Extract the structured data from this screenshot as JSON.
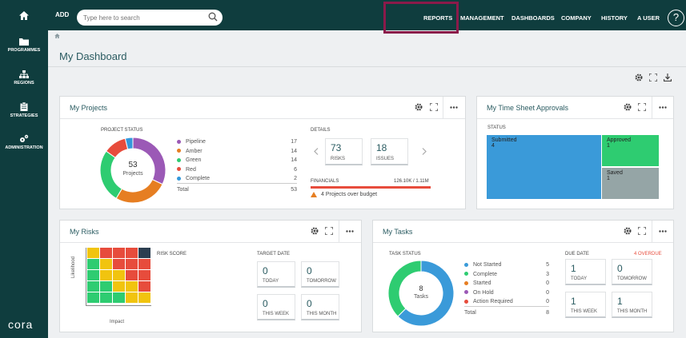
{
  "topbar": {
    "add_label": "ADD",
    "search_placeholder": "Type here to search",
    "nav": [
      "REPORTS",
      "MANAGEMENT",
      "DASHBOARDS",
      "COMPANY",
      "HISTORY",
      "A USER"
    ],
    "help": "?"
  },
  "sidebar": {
    "items": [
      "PROGRAMMES",
      "REGIONS",
      "STRATEGIES",
      "ADMINISTRATION"
    ],
    "logo": "cora"
  },
  "page": {
    "title": "My Dashboard"
  },
  "projects": {
    "title": "My Projects",
    "status_label": "PROJECT STATUS",
    "donut_count": "53",
    "donut_label": "Projects",
    "legend": [
      {
        "name": "Pipeline",
        "value": "17",
        "color": "#9b59b6"
      },
      {
        "name": "Amber",
        "value": "14",
        "color": "#e67e22"
      },
      {
        "name": "Green",
        "value": "14",
        "color": "#2ecc71"
      },
      {
        "name": "Red",
        "value": "6",
        "color": "#e74c3c"
      },
      {
        "name": "Complete",
        "value": "2",
        "color": "#3498db"
      }
    ],
    "total_label": "Total",
    "total_value": "53",
    "details_label": "DETAILS",
    "risks_value": "73",
    "risks_label": "RISKS",
    "issues_value": "18",
    "issues_label": "ISSUES",
    "financials_label": "FINANCIALS",
    "financials_value": "126.10K / 1.11M",
    "over_budget": "4 Projects over budget"
  },
  "timesheet": {
    "title": "My Time Sheet Approvals",
    "status_label": "STATUS",
    "blocks": [
      {
        "label": "Submitted",
        "value": "4",
        "color": "#3a9ad9"
      },
      {
        "label": "Approved",
        "value": "1",
        "color": "#2ecc71"
      },
      {
        "label": "Saved",
        "value": "1",
        "color": "#95a5a6"
      }
    ]
  },
  "risks": {
    "title": "My Risks",
    "risk_score_label": "RISK SCORE",
    "likelihood_label": "Likelihood",
    "impact_label": "Impact",
    "matrix_colors": [
      [
        "#f1c40f",
        "#e74c3c",
        "#e74c3c",
        "#e74c3c",
        "#2c3e50"
      ],
      [
        "#2ecc71",
        "#f1c40f",
        "#e74c3c",
        "#e74c3c",
        "#e74c3c"
      ],
      [
        "#2ecc71",
        "#f1c40f",
        "#f1c40f",
        "#e74c3c",
        "#e74c3c"
      ],
      [
        "#2ecc71",
        "#2ecc71",
        "#f1c40f",
        "#f1c40f",
        "#e74c3c"
      ],
      [
        "#2ecc71",
        "#2ecc71",
        "#2ecc71",
        "#f1c40f",
        "#f1c40f"
      ]
    ],
    "target_date_label": "TARGET DATE",
    "tiles": [
      {
        "value": "0",
        "label": "TODAY"
      },
      {
        "value": "0",
        "label": "TOMORROW"
      },
      {
        "value": "0",
        "label": "THIS WEEK"
      },
      {
        "value": "0",
        "label": "THIS MONTH"
      }
    ]
  },
  "tasks": {
    "title": "My Tasks",
    "status_label": "TASK STATUS",
    "donut_count": "8",
    "donut_label": "Tasks",
    "legend": [
      {
        "name": "Not Started",
        "value": "5",
        "color": "#3a9ad9"
      },
      {
        "name": "Complete",
        "value": "3",
        "color": "#2ecc71"
      },
      {
        "name": "Started",
        "value": "0",
        "color": "#e67e22"
      },
      {
        "name": "On Hold",
        "value": "0",
        "color": "#9b59b6"
      },
      {
        "name": "Action Required",
        "value": "0",
        "color": "#e74c3c"
      }
    ],
    "total_label": "Total",
    "total_value": "8",
    "due_date_label": "DUE DATE",
    "overdue_label": "4 OVERDUE",
    "tiles": [
      {
        "value": "1",
        "label": "TODAY"
      },
      {
        "value": "0",
        "label": "TOMORROW"
      },
      {
        "value": "1",
        "label": "THIS WEEK"
      },
      {
        "value": "1",
        "label": "THIS MONTH"
      }
    ]
  }
}
